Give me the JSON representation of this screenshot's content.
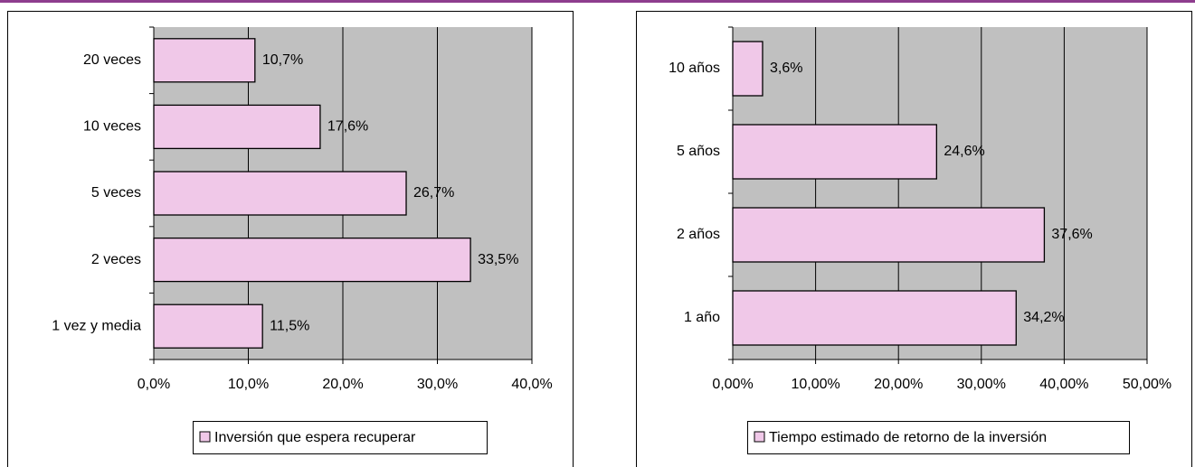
{
  "chart_data": [
    {
      "type": "bar",
      "orientation": "horizontal",
      "categories": [
        "20 veces",
        "10 veces",
        "5 veces",
        "2 veces",
        "1 vez y media"
      ],
      "series": [
        {
          "name": "Inversión que espera recuperar",
          "color": "#f0c8e8",
          "values": [
            10.7,
            17.6,
            26.7,
            33.5,
            11.5
          ],
          "value_labels": [
            "10,7%",
            "17,6%",
            "26,7%",
            "33,5%",
            "11,5%"
          ]
        }
      ],
      "xlim": [
        0,
        40
      ],
      "xticks": [
        {
          "value": 0,
          "label": "0,0%"
        },
        {
          "value": 10,
          "label": "10,0%"
        },
        {
          "value": 20,
          "label": "20,0%"
        },
        {
          "value": 30,
          "label": "30,0%"
        },
        {
          "value": 40,
          "label": "40,0%"
        }
      ],
      "grid": true,
      "legend": "bottom"
    },
    {
      "type": "bar",
      "orientation": "horizontal",
      "categories": [
        "10 años",
        "5 años",
        "2 años",
        "1 año"
      ],
      "series": [
        {
          "name": "Tiempo estimado de retorno de la inversión",
          "color": "#f0c8e8",
          "values": [
            3.6,
            24.6,
            37.6,
            34.2
          ],
          "value_labels": [
            "3,6%",
            "24,6%",
            "37,6%",
            "34,2%"
          ]
        }
      ],
      "xlim": [
        0,
        50
      ],
      "xticks": [
        {
          "value": 0,
          "label": "0,00%"
        },
        {
          "value": 10,
          "label": "10,00%"
        },
        {
          "value": 20,
          "label": "20,00%"
        },
        {
          "value": 30,
          "label": "30,00%"
        },
        {
          "value": 40,
          "label": "40,00%"
        },
        {
          "value": 50,
          "label": "50,00%"
        }
      ],
      "grid": true,
      "legend": "bottom"
    }
  ]
}
